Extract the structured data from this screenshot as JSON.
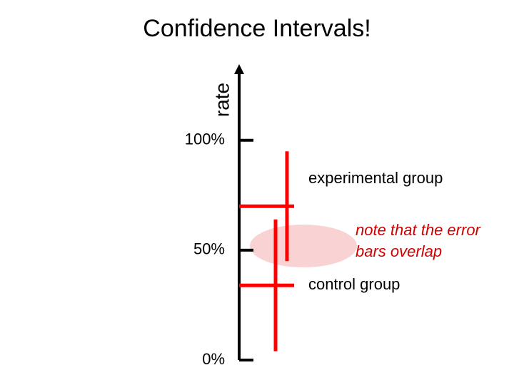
{
  "chart_data": {
    "type": "errorbar",
    "title": "Confidence Intervals!",
    "y_label": "rate",
    "ylim": [
      0,
      134
    ],
    "yticks": [
      {
        "value": 0,
        "label": "0%"
      },
      {
        "value": 50,
        "label": "50%"
      },
      {
        "value": 100,
        "label": "100%"
      }
    ],
    "series": [
      {
        "name": "experimental group",
        "color": "#ff0000",
        "values": [
          70
        ],
        "error": [
          25
        ]
      },
      {
        "name": "control group",
        "color": "#ff0000",
        "values": [
          34
        ],
        "error": [
          30
        ]
      }
    ],
    "annotation": [
      "note that the error",
      "bars overlap"
    ]
  }
}
